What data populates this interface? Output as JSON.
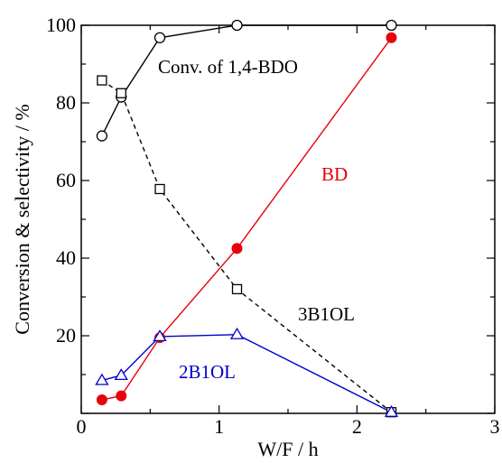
{
  "chart_data": {
    "type": "line",
    "xlabel": "W/F / h",
    "ylabel": "Conversion & selectivity / %",
    "xlim": [
      0,
      3
    ],
    "ylim": [
      0,
      100
    ],
    "x_ticks": [
      "0",
      "1",
      "2",
      "3"
    ],
    "y_ticks": [
      "20",
      "40",
      "60",
      "80",
      "100"
    ],
    "grid": false,
    "legend": "none",
    "series": [
      {
        "name": "Conv. of 1,4-BDO",
        "color": "#000000",
        "marker": "circle-open",
        "line": "solid",
        "x": [
          0.15,
          0.29,
          0.57,
          1.13,
          2.25
        ],
        "y": [
          71.5,
          81.5,
          96.8,
          100,
          100
        ]
      },
      {
        "name": "3B1OL",
        "color": "#000000",
        "marker": "square-open",
        "line": "dashed",
        "x": [
          0.15,
          0.29,
          0.57,
          1.13,
          2.25
        ],
        "y": [
          85.8,
          82.5,
          57.8,
          32,
          0.3
        ]
      },
      {
        "name": "BD",
        "color": "#e8000b",
        "marker": "circle-filled",
        "line": "solid",
        "x": [
          0.15,
          0.29,
          0.57,
          1.13,
          2.25
        ],
        "y": [
          3.5,
          4.5,
          19.5,
          42.5,
          96.8
        ]
      },
      {
        "name": "2B1OL",
        "color": "#0000cc",
        "marker": "triangle-open",
        "line": "solid",
        "x": [
          0.15,
          0.29,
          0.57,
          1.13,
          2.25
        ],
        "y": [
          8.5,
          9.8,
          19.8,
          20.3,
          0.3
        ]
      }
    ]
  }
}
